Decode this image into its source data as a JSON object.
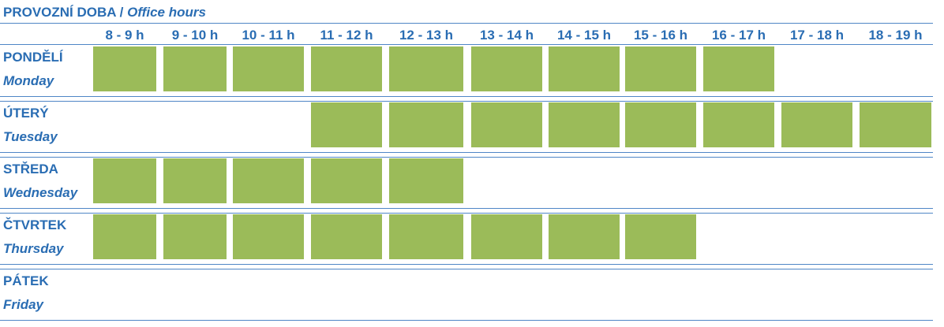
{
  "header": {
    "title_cz": "PROVOZNÍ DOBA /",
    "title_en": "Office hours"
  },
  "hours": [
    "8 - 9 h",
    "9 - 10 h",
    "10 - 11 h",
    "11 - 12 h",
    "12 - 13 h",
    "13 - 14 h",
    "14 - 15 h",
    "15 - 16 h",
    "16 - 17 h",
    "17 - 18 h",
    "18 - 19 h"
  ],
  "days": [
    {
      "name_cz": "PONDĚLÍ",
      "name_en": "Monday",
      "open": [
        true,
        true,
        true,
        true,
        true,
        true,
        true,
        true,
        true,
        false,
        false
      ]
    },
    {
      "name_cz": "ÚTERÝ",
      "name_en": "Tuesday",
      "open": [
        false,
        false,
        false,
        true,
        true,
        true,
        true,
        true,
        true,
        true,
        true
      ]
    },
    {
      "name_cz": "STŘEDA",
      "name_en": "Wednesday",
      "open": [
        true,
        true,
        true,
        true,
        true,
        false,
        false,
        false,
        false,
        false,
        false
      ]
    },
    {
      "name_cz": "ČTVRTEK",
      "name_en": "Thursday",
      "open": [
        true,
        true,
        true,
        true,
        true,
        true,
        true,
        true,
        false,
        false,
        false
      ]
    },
    {
      "name_cz": "PÁTEK",
      "name_en": "Friday",
      "open": [
        false,
        false,
        false,
        false,
        false,
        false,
        false,
        false,
        false,
        false,
        false
      ]
    }
  ]
}
